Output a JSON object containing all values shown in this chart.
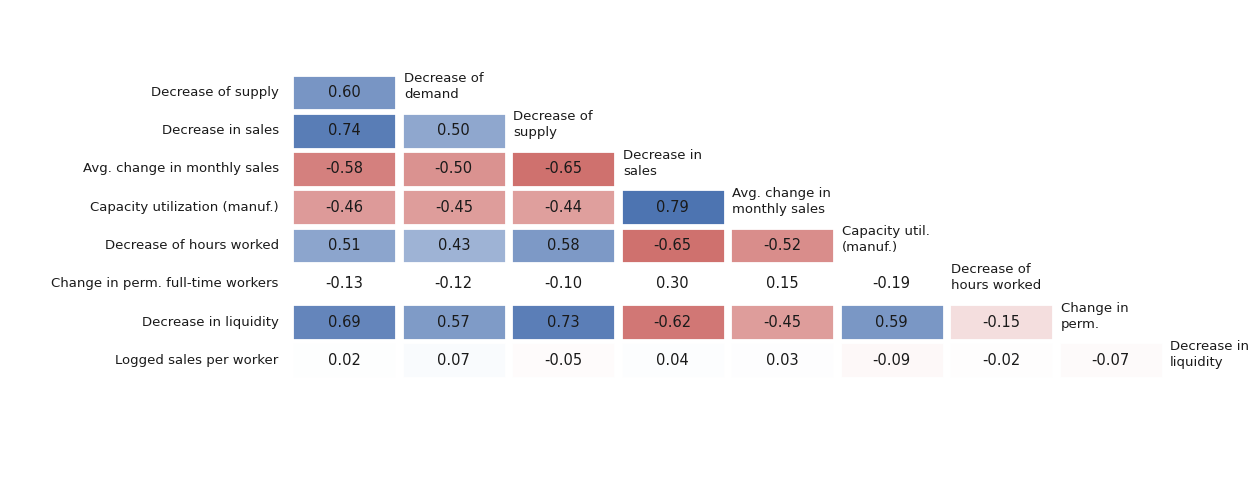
{
  "row_labels": [
    "Decrease of supply",
    "Decrease in sales",
    "Avg. change in monthly sales",
    "Capacity utilization (manuf.)",
    "Decrease of hours worked",
    "Change in perm. full-time workers",
    "Decrease in liquidity",
    "Logged sales per worker"
  ],
  "col_labels": [
    "Decrease of\ndemand",
    "Decrease of\nsupply",
    "Decrease in\nsales",
    "Avg. change in\nmonthly sales",
    "Capacity util.\n(manuf.)",
    "Decrease of\nhours worked",
    "Change in\nperm.",
    "Decrease in\nliquidity"
  ],
  "matrix": [
    [
      0.6,
      null,
      null,
      null,
      null,
      null,
      null,
      null
    ],
    [
      0.74,
      0.5,
      null,
      null,
      null,
      null,
      null,
      null
    ],
    [
      -0.58,
      -0.5,
      -0.65,
      null,
      null,
      null,
      null,
      null
    ],
    [
      -0.46,
      -0.45,
      -0.44,
      0.79,
      null,
      null,
      null,
      null
    ],
    [
      0.51,
      0.43,
      0.58,
      -0.65,
      -0.52,
      null,
      null,
      null
    ],
    [
      -0.13,
      -0.12,
      -0.1,
      0.3,
      0.15,
      -0.19,
      null,
      null
    ],
    [
      0.69,
      0.57,
      0.73,
      -0.62,
      -0.45,
      0.59,
      -0.15,
      null
    ],
    [
      0.02,
      0.07,
      -0.05,
      0.04,
      0.03,
      -0.09,
      -0.02,
      -0.07
    ]
  ],
  "no_color_rows": [
    5
  ],
  "light_color_rows": [
    7
  ],
  "background_color": "#ffffff",
  "blue_strong": [
    75,
    114,
    176
  ],
  "red_strong": [
    196,
    80,
    77
  ],
  "font_size_cell": 10.5,
  "font_size_row_label": 9.5,
  "font_size_col_label": 9.5,
  "vmax": 0.8
}
